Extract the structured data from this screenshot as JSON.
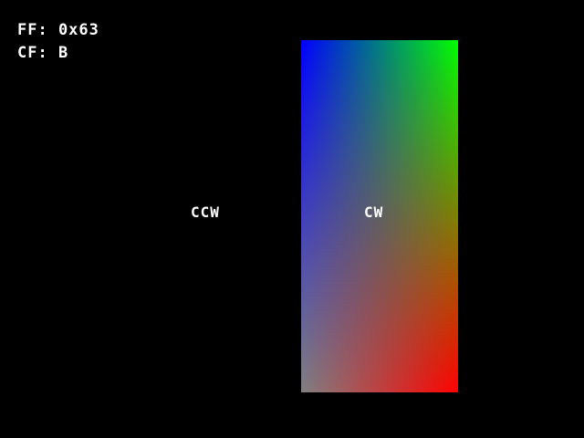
{
  "hud": {
    "ff_text": "FF: 0x63",
    "cf_text": "CF: B"
  },
  "labels": {
    "ccw": "CCW",
    "cw": "CW"
  },
  "quad_colors": {
    "top_left": "#0000ff",
    "top_right": "#00ff00",
    "bottom_left": "#808080",
    "bottom_right": "#ff0000"
  }
}
